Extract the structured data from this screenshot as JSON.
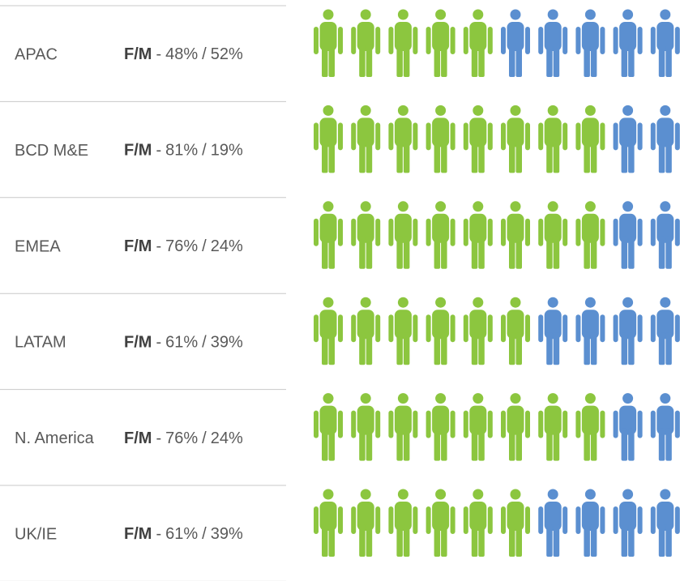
{
  "chart_data": {
    "type": "pictogram",
    "categories": [
      "APAC",
      "BCD M&E",
      "EMEA",
      "LATAM",
      "N. America",
      "UK/IE"
    ],
    "label": "F/M",
    "label_dash": "-",
    "label_slash": "/",
    "icons": 10,
    "series": [
      {
        "color": "#8cc63f",
        "values": [
          48,
          81,
          76,
          61,
          76,
          61
        ],
        "value_labels": [
          "48%",
          "81%",
          "76%",
          "61%",
          "76%",
          "61%"
        ]
      },
      {
        "color": "#5b8fd0",
        "values": [
          52,
          19,
          24,
          39,
          24,
          39
        ],
        "value_labels": [
          "52%",
          "19%",
          "24%",
          "39%",
          "24%",
          "39%"
        ]
      }
    ]
  }
}
